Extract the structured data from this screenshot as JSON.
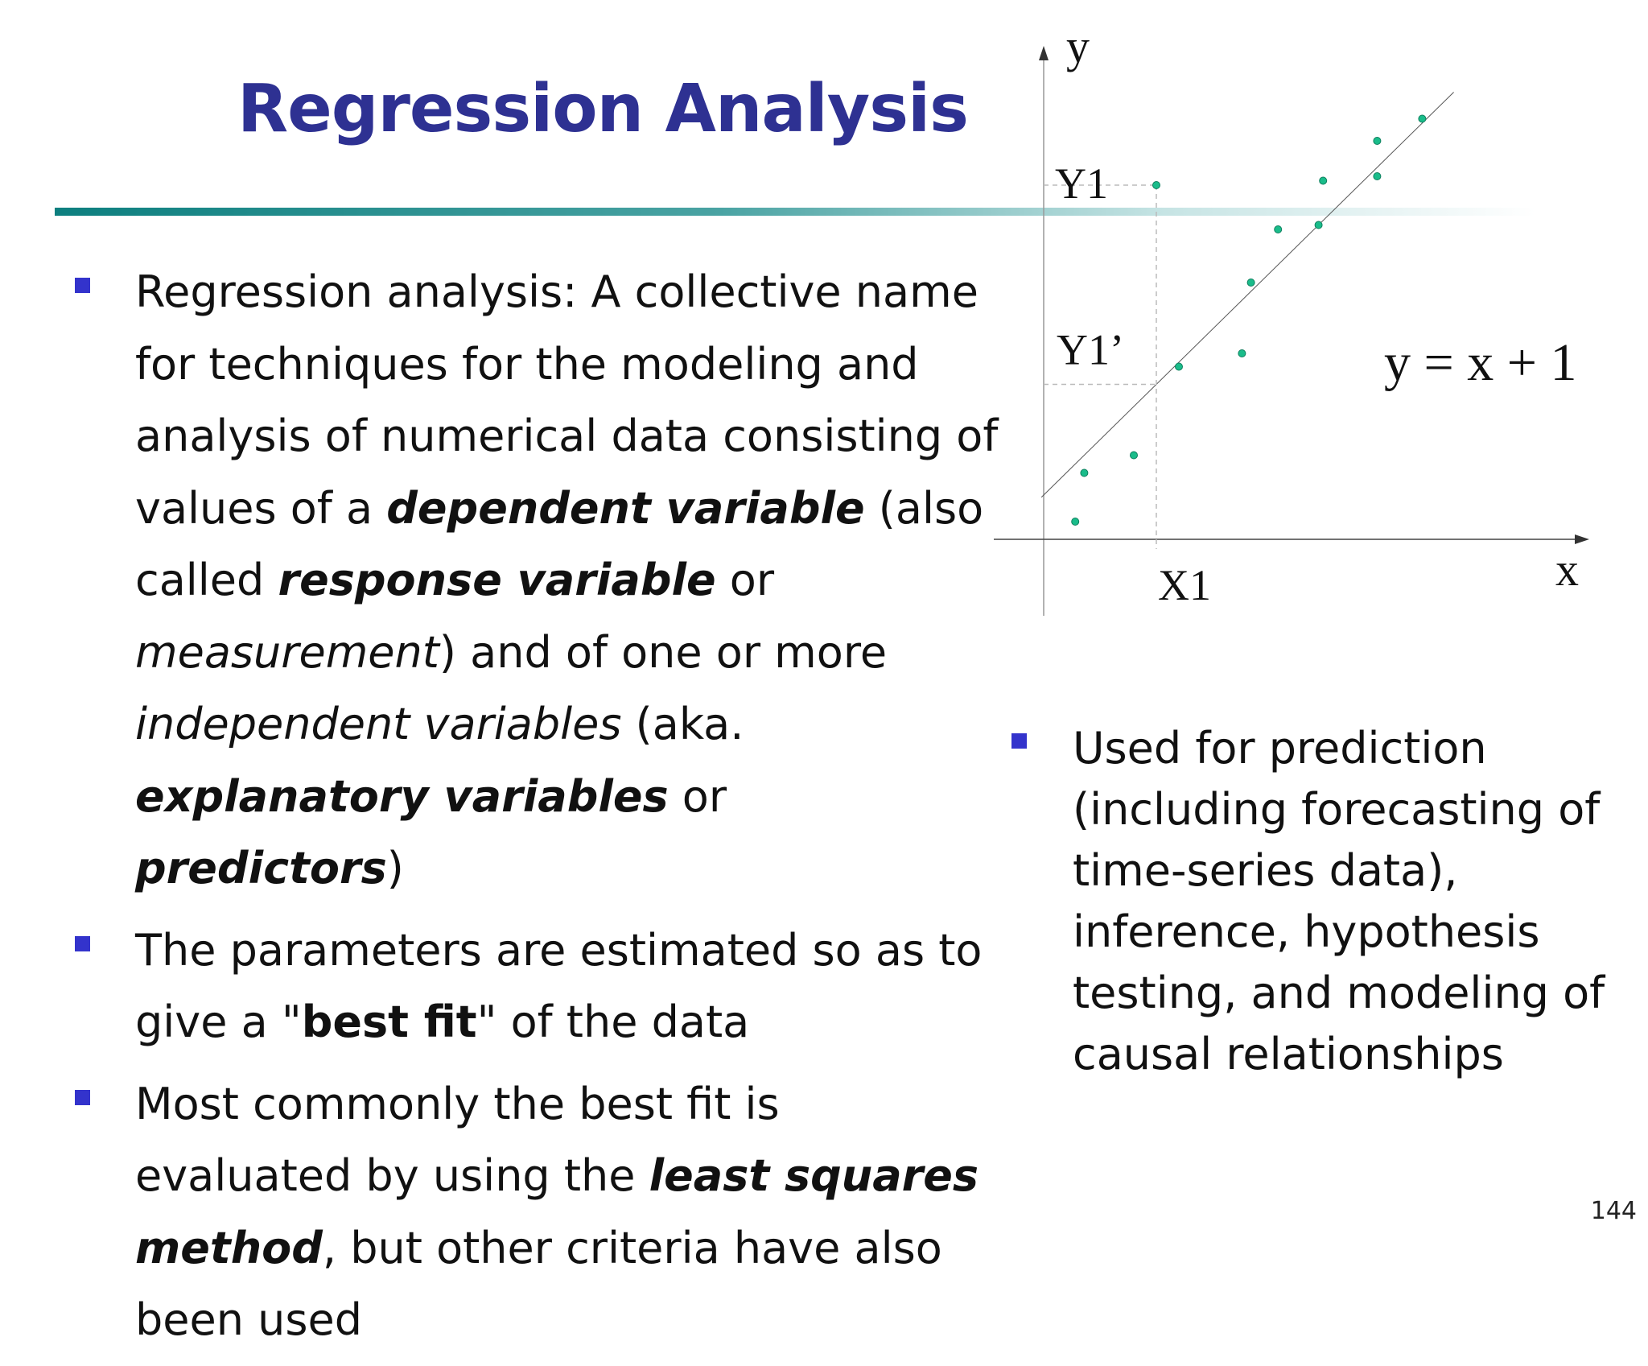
{
  "slide": {
    "title": "Regression Analysis",
    "page_number": "144",
    "colors": {
      "title": "#2e3192",
      "bullet": "#3333cc",
      "divider": "#0d7f7f",
      "points": "#1abc8a"
    }
  },
  "left_bullets": [
    [
      {
        "t": "Regression analysis: A collective name for techniques for the modeling and analysis of numerical data consisting of values of a ",
        "s": ""
      },
      {
        "t": "dependent variable",
        "s": "bi"
      },
      {
        "t": " (also called ",
        "s": ""
      },
      {
        "t": "response variable",
        "s": "bi"
      },
      {
        "t": " or ",
        "s": ""
      },
      {
        "t": "measurement",
        "s": "i"
      },
      {
        "t": ") and of one or more ",
        "s": ""
      },
      {
        "t": "independent variables",
        "s": "i"
      },
      {
        "t": " (aka. ",
        "s": ""
      },
      {
        "t": "explanatory variables",
        "s": "bi"
      },
      {
        "t": " or ",
        "s": ""
      },
      {
        "t": "predictors",
        "s": "bi"
      },
      {
        "t": ")",
        "s": ""
      }
    ],
    [
      {
        "t": "The parameters are estimated so as to give a \"",
        "s": ""
      },
      {
        "t": "best fit",
        "s": "b"
      },
      {
        "t": "\" of the data",
        "s": ""
      }
    ],
    [
      {
        "t": "Most commonly the best fit is evaluated by using the ",
        "s": ""
      },
      {
        "t": "least squares method",
        "s": "bi"
      },
      {
        "t": ", but other criteria have also been used",
        "s": ""
      }
    ]
  ],
  "right_bullets": [
    [
      {
        "t": "Used for prediction (including forecasting of time-series data), inference, hypothesis testing, and modeling of causal relationships",
        "s": ""
      }
    ]
  ],
  "chart_data": {
    "type": "scatter",
    "axis_labels": {
      "x": "x",
      "y": "y"
    },
    "equation": "y = x + 1",
    "annotations": {
      "x1": "X1",
      "y1": "Y1",
      "y1_prime": "Y1’"
    },
    "xlim": [
      0,
      10
    ],
    "ylim": [
      0,
      10
    ],
    "x1_value": 2.5,
    "fit_line": {
      "slope": 1,
      "intercept": 1
    },
    "points": [
      {
        "x": 0.7,
        "y": 0.4
      },
      {
        "x": 0.9,
        "y": 1.5
      },
      {
        "x": 2.0,
        "y": 1.9
      },
      {
        "x": 3.0,
        "y": 3.9
      },
      {
        "x": 4.4,
        "y": 4.2
      },
      {
        "x": 4.6,
        "y": 5.8
      },
      {
        "x": 5.2,
        "y": 7.0
      },
      {
        "x": 6.1,
        "y": 7.1
      },
      {
        "x": 6.2,
        "y": 8.1
      },
      {
        "x": 2.5,
        "y": 8.0
      },
      {
        "x": 7.4,
        "y": 8.2
      },
      {
        "x": 7.4,
        "y": 9.0
      },
      {
        "x": 8.4,
        "y": 9.5
      }
    ]
  }
}
